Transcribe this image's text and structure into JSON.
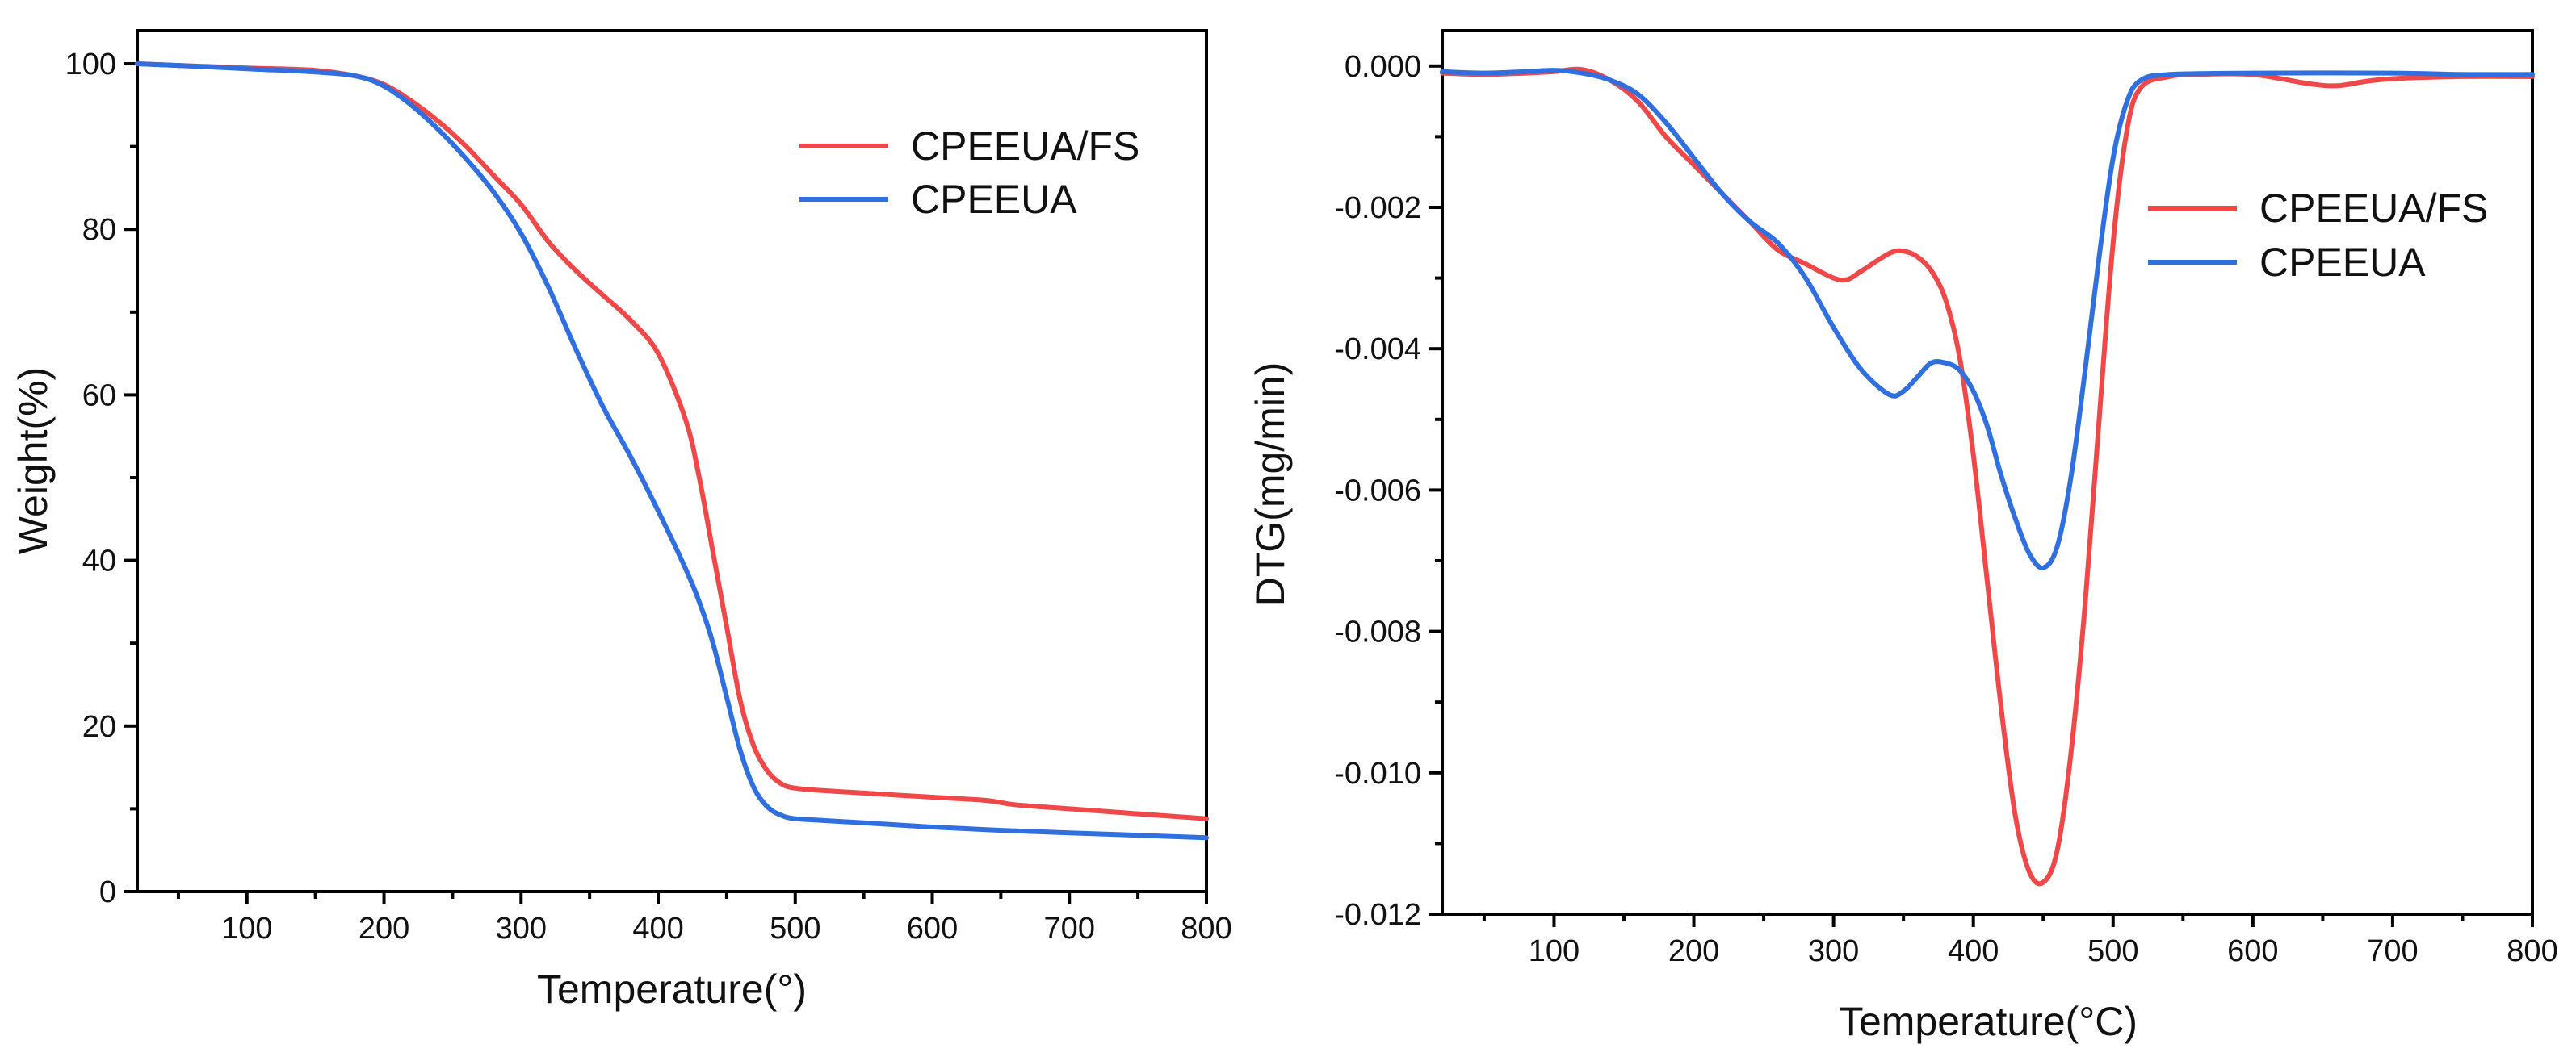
{
  "chart_data": [
    {
      "type": "line",
      "title": "",
      "xlabel": "Temperature(°)",
      "ylabel": "Weight(%)",
      "xlim": [
        20,
        800
      ],
      "ylim": [
        0,
        104
      ],
      "x_ticks": [
        100,
        200,
        300,
        400,
        500,
        600,
        700,
        800
      ],
      "y_ticks": [
        0,
        20,
        40,
        60,
        80,
        100
      ],
      "x_tick_labels": [
        "100",
        "200",
        "300",
        "400",
        "500",
        "600",
        "700",
        "800"
      ],
      "y_tick_labels": [
        "0",
        "20",
        "40",
        "60",
        "80",
        "100"
      ],
      "legend_position": "top-right",
      "series": [
        {
          "name": "CPEEUA/FS",
          "color": "#f04848",
          "x": [
            20,
            50,
            100,
            150,
            180,
            200,
            220,
            240,
            260,
            280,
            300,
            320,
            340,
            360,
            380,
            400,
            420,
            430,
            440,
            450,
            460,
            470,
            480,
            490,
            500,
            520,
            550,
            600,
            640,
            660,
            700,
            750,
            800
          ],
          "y": [
            100,
            99.8,
            99.5,
            99.2,
            98.5,
            97.5,
            95.5,
            93,
            90,
            86.5,
            83,
            78.5,
            75,
            72,
            69,
            65,
            57,
            50,
            41,
            32,
            23,
            17.5,
            14.5,
            13,
            12.5,
            12.2,
            11.9,
            11.4,
            11,
            10.5,
            10,
            9.4,
            8.8
          ]
        },
        {
          "name": "CPEEUA",
          "color": "#2f6fe0",
          "x": [
            20,
            50,
            100,
            150,
            180,
            200,
            220,
            240,
            260,
            280,
            300,
            320,
            340,
            360,
            380,
            400,
            420,
            430,
            440,
            450,
            460,
            470,
            480,
            490,
            500,
            520,
            550,
            600,
            650,
            700,
            750,
            800
          ],
          "y": [
            100,
            99.8,
            99.4,
            99,
            98.5,
            97.3,
            95,
            92,
            88.5,
            84.5,
            79.5,
            73,
            65.5,
            58.5,
            52.5,
            46,
            39,
            35,
            30,
            23.5,
            17,
            12.5,
            10.2,
            9.2,
            8.8,
            8.6,
            8.3,
            7.8,
            7.4,
            7.1,
            6.8,
            6.5
          ]
        }
      ]
    },
    {
      "type": "line",
      "title": "",
      "xlabel": "Temperature(°C)",
      "ylabel": "DTG(mg/min)",
      "xlim": [
        20,
        800
      ],
      "ylim": [
        -0.012,
        0.0005
      ],
      "x_ticks": [
        100,
        200,
        300,
        400,
        500,
        600,
        700,
        800
      ],
      "y_ticks": [
        0,
        -0.002,
        -0.004,
        -0.006,
        -0.008,
        -0.01,
        -0.012
      ],
      "x_tick_labels": [
        "100",
        "200",
        "300",
        "400",
        "500",
        "600",
        "700",
        "800"
      ],
      "y_tick_labels": [
        "0.000",
        "-0.002",
        "-0.004",
        "-0.006",
        "-0.008",
        "-0.010",
        "-0.012"
      ],
      "legend_position": "top-right",
      "series": [
        {
          "name": "CPEEUA/FS",
          "color": "#f04848",
          "x": [
            20,
            50,
            80,
            100,
            120,
            140,
            160,
            180,
            200,
            220,
            240,
            260,
            280,
            300,
            310,
            320,
            340,
            350,
            360,
            370,
            380,
            390,
            400,
            410,
            420,
            430,
            440,
            450,
            460,
            470,
            480,
            490,
            500,
            510,
            520,
            540,
            560,
            600,
            640,
            660,
            680,
            700,
            750,
            800
          ],
          "y": [
            -0.0001,
            -0.00012,
            -0.0001,
            -8e-05,
            -5e-05,
            -0.0002,
            -0.0005,
            -0.001,
            -0.0014,
            -0.0018,
            -0.0022,
            -0.0026,
            -0.0028,
            -0.003,
            -0.00302,
            -0.0029,
            -0.00265,
            -0.00262,
            -0.0027,
            -0.0029,
            -0.0033,
            -0.0041,
            -0.0055,
            -0.0073,
            -0.0091,
            -0.0106,
            -0.0114,
            -0.01155,
            -0.0111,
            -0.0097,
            -0.0076,
            -0.005,
            -0.0025,
            -0.0009,
            -0.0003,
            -0.00015,
            -0.00012,
            -0.00012,
            -0.00025,
            -0.00028,
            -0.00022,
            -0.00018,
            -0.00015,
            -0.00015
          ]
        },
        {
          "name": "CPEEUA",
          "color": "#2f6fe0",
          "x": [
            20,
            50,
            80,
            100,
            120,
            140,
            160,
            180,
            200,
            220,
            240,
            260,
            280,
            300,
            320,
            340,
            350,
            360,
            370,
            380,
            390,
            400,
            410,
            420,
            430,
            440,
            450,
            460,
            470,
            480,
            490,
            500,
            510,
            520,
            540,
            600,
            700,
            750,
            800
          ],
          "y": [
            -8e-05,
            -0.0001,
            -8e-05,
            -6e-05,
            -0.0001,
            -0.0002,
            -0.0004,
            -0.0008,
            -0.0013,
            -0.0018,
            -0.0022,
            -0.0025,
            -0.003,
            -0.0037,
            -0.0043,
            -0.00465,
            -0.0046,
            -0.0044,
            -0.0042,
            -0.0042,
            -0.0043,
            -0.0046,
            -0.0051,
            -0.0058,
            -0.0064,
            -0.0069,
            -0.0071,
            -0.0068,
            -0.0058,
            -0.0043,
            -0.0027,
            -0.0013,
            -0.0005,
            -0.0002,
            -0.00012,
            -0.0001,
            -0.0001,
            -0.00012,
            -0.00012
          ]
        }
      ]
    }
  ]
}
